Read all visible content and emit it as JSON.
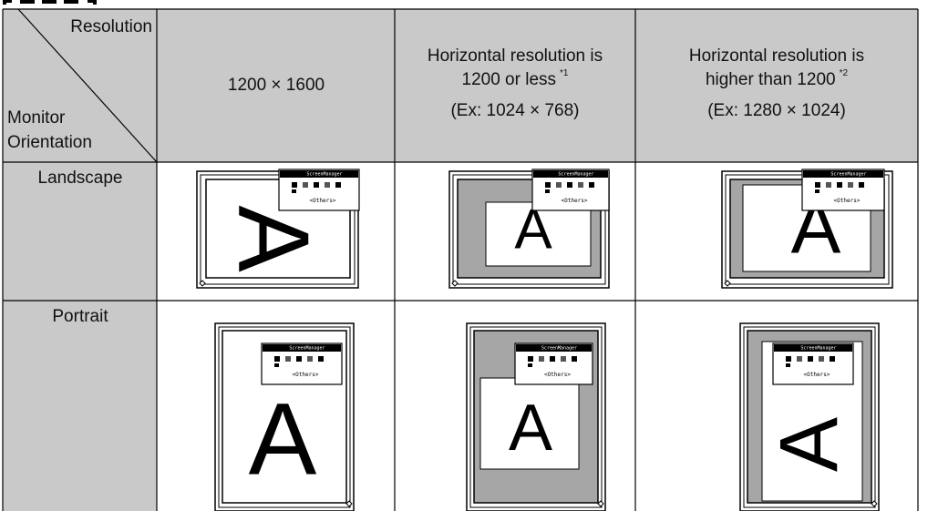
{
  "table": {
    "corner": {
      "column_label": "Resolution",
      "row_label": [
        "Monitor",
        "Orientation"
      ]
    },
    "columns": [
      {
        "lines": [
          "1200 × 1600"
        ]
      },
      {
        "lines": [
          "Horizontal resolution is",
          "1200 or less"
        ],
        "note": "*1",
        "example": "(Ex: 1024 × 768)"
      },
      {
        "lines": [
          "Horizontal resolution is",
          "higher than 1200"
        ],
        "note": "*2",
        "example": "(Ex: 1280 × 1024)"
      }
    ],
    "rows": [
      "Landscape",
      "Portrait"
    ]
  },
  "osd": {
    "title": "ScreenManager",
    "item": "<Others>"
  }
}
